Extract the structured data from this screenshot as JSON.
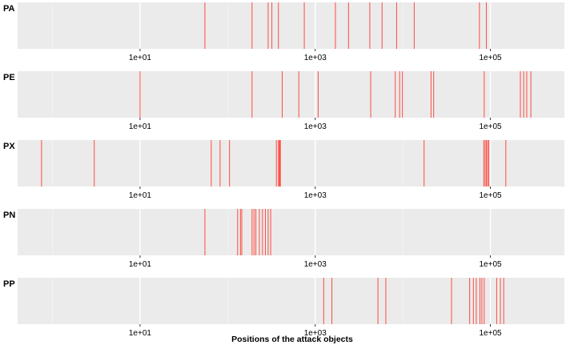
{
  "chart_data": {
    "type": "rug",
    "xlabel": "Positions of the attack objects",
    "xscale": "log10",
    "xlim": [
      0.4,
      700000
    ],
    "tick_values": [
      10,
      1000,
      100000
    ],
    "tick_labels": [
      "1e+01",
      "1e+03",
      "1e+05"
    ],
    "grid": true,
    "colors": {
      "mark": "#ff3b30",
      "panel_bg": "#ebebeb",
      "grid_major": "#ffffff",
      "grid_minor": "#f4f4f4"
    },
    "panels": [
      {
        "label": "PA",
        "values": [
          55,
          190,
          290,
          320,
          380,
          750,
          1700,
          2400,
          4200,
          5800,
          8500,
          13500,
          75000,
          90000
        ]
      },
      {
        "label": "PE",
        "values": [
          10,
          190,
          420,
          650,
          1080,
          4300,
          8200,
          9200,
          9900,
          21000,
          22500,
          85000,
          220000,
          240000,
          260000,
          290000
        ]
      },
      {
        "label": "PX",
        "values": [
          0.75,
          3,
          65,
          82,
          105,
          360,
          380,
          390,
          395,
          400,
          17500,
          84000,
          87000,
          90000,
          93000,
          96000,
          150000
        ]
      },
      {
        "label": "PN",
        "values": [
          55,
          130,
          140,
          145,
          190,
          200,
          210,
          230,
          250,
          270,
          290,
          310
        ]
      },
      {
        "label": "PP",
        "values": [
          1250,
          1550,
          5200,
          6400,
          36000,
          58000,
          64000,
          69000,
          76000,
          80000,
          85000,
          118000,
          130000,
          142000
        ]
      }
    ]
  }
}
